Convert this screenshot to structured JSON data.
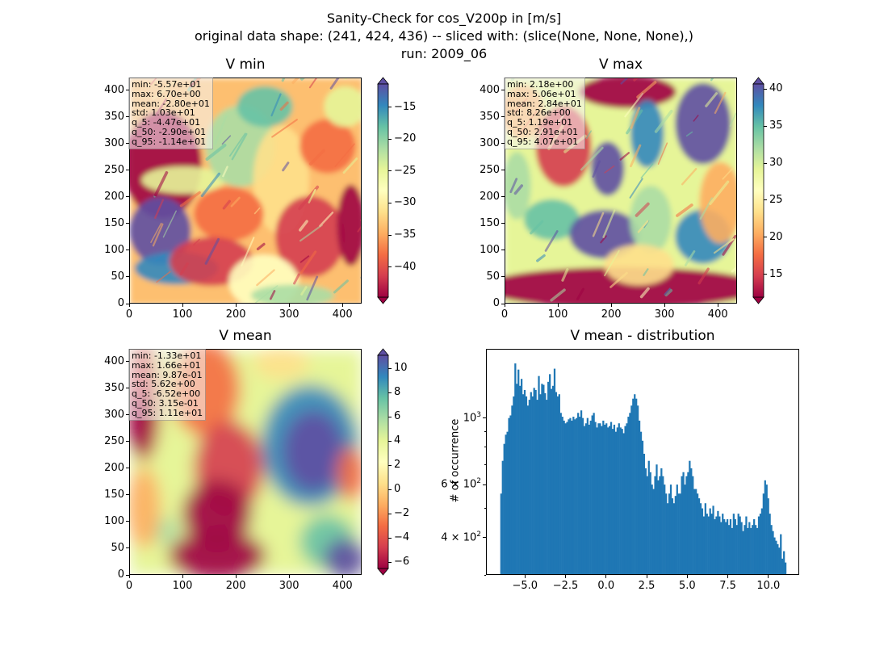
{
  "figure": {
    "title_line1": "Sanity-Check for cos_V200p in [m/s]",
    "title_line2": "original data shape: (241, 424, 436) -- sliced with: (slice(None, None, None),)",
    "title_line3": "run: 2009_06"
  },
  "colormap": {
    "name": "Spectral",
    "stops": [
      "#9e0142",
      "#d53e4f",
      "#f46d43",
      "#fdae61",
      "#fee08b",
      "#ffffbf",
      "#e6f598",
      "#abdda4",
      "#66c2a5",
      "#3288bd",
      "#5e4fa2"
    ]
  },
  "maps": [
    {
      "title": "V min",
      "stats": [
        "min: -5.57e+01",
        "max: 6.70e+00",
        "mean: -2.80e+01",
        "std: 1.03e+01",
        "q_5: -4.47e+01",
        "q_50: -2.90e+01",
        "q_95: -1.14e+01"
      ],
      "xticks": [
        "0",
        "100",
        "200",
        "300",
        "400"
      ],
      "yticks": [
        "0",
        "50",
        "100",
        "150",
        "200",
        "250",
        "300",
        "350",
        "400"
      ],
      "cbar_ticks": [
        "−15",
        "−20",
        "−25",
        "−30",
        "−35",
        "−40"
      ],
      "cbar_tick_values": [
        -15,
        -20,
        -25,
        -30,
        -35,
        -40
      ],
      "cbar_range": [
        -44.7,
        -11.4
      ]
    },
    {
      "title": "V max",
      "stats": [
        "min: 2.18e+00",
        "max: 5.06e+01",
        "mean: 2.84e+01",
        "std: 8.26e+00",
        "q_5: 1.19e+01",
        "q_50: 2.91e+01",
        "q_95: 4.07e+01"
      ],
      "xticks": [
        "0",
        "100",
        "200",
        "300",
        "400"
      ],
      "yticks": [
        "0",
        "50",
        "100",
        "150",
        "200",
        "250",
        "300",
        "350",
        "400"
      ],
      "cbar_ticks": [
        "40",
        "35",
        "30",
        "25",
        "20",
        "15"
      ],
      "cbar_tick_values": [
        40,
        35,
        30,
        25,
        20,
        15
      ],
      "cbar_range": [
        11.9,
        40.7
      ]
    },
    {
      "title": "V mean",
      "stats": [
        "min: -1.33e+01",
        "max: 1.66e+01",
        "mean: 9.87e-01",
        "std: 5.62e+00",
        "q_5: -6.52e+00",
        "q_50: 3.15e-01",
        "q_95: 1.11e+01"
      ],
      "xticks": [
        "0",
        "100",
        "200",
        "300",
        "400"
      ],
      "yticks": [
        "0",
        "50",
        "100",
        "150",
        "200",
        "250",
        "300",
        "350",
        "400"
      ],
      "cbar_ticks": [
        "10",
        "8",
        "6",
        "4",
        "2",
        "0",
        "−2",
        "−4",
        "−6"
      ],
      "cbar_tick_values": [
        10,
        8,
        6,
        4,
        2,
        0,
        -2,
        -4,
        -6
      ],
      "cbar_range": [
        -6.52,
        11.1
      ]
    }
  ],
  "histogram": {
    "title": "V mean - distribution",
    "ylabel": "# of occurrence",
    "xticks": [
      "−5.0",
      "−2.5",
      "0.0",
      "2.5",
      "5.0",
      "7.5",
      "10.0"
    ],
    "xtick_values": [
      -5.0,
      -2.5,
      0.0,
      2.5,
      5.0,
      7.5,
      10.0
    ],
    "yticks": [
      {
        "base": "10",
        "exp": "3",
        "mant": "",
        "value": 1000
      },
      {
        "base": "10",
        "exp": "2",
        "mant": "6 × ",
        "value": 600
      },
      {
        "base": "10",
        "exp": "2",
        "mant": "4 × ",
        "value": 400
      }
    ],
    "bar_color": "#1f77b4"
  },
  "chart_data": {
    "type": "bar",
    "title": "V mean - distribution",
    "xlabel": "",
    "ylabel": "# of occurrence",
    "yscale": "log",
    "xlim": [
      -7.4,
      11.9
    ],
    "ylim": [
      300,
      1700
    ],
    "bin_start": -6.52,
    "bin_end": 11.1,
    "counts": [
      560,
      720,
      820,
      880,
      900,
      1000,
      1020,
      1100,
      1180,
      1520,
      1300,
      1450,
      1280,
      1350,
      1200,
      1240,
      1180,
      1100,
      1150,
      1220,
      1180,
      1260,
      1240,
      1150,
      1380,
      1200,
      1300,
      1290,
      1210,
      1150,
      1320,
      1400,
      1250,
      1280,
      1460,
      1220,
      1180,
      1200,
      1040,
      1010,
      980,
      960,
      970,
      990,
      1000,
      980,
      1010,
      990,
      1000,
      1040,
      1010,
      1060,
      1000,
      940,
      960,
      1000,
      950,
      980,
      1020,
      1040,
      970,
      930,
      960,
      960,
      940,
      980,
      950,
      960,
      930,
      940,
      970,
      920,
      950,
      900,
      930,
      960,
      930,
      920,
      890,
      940,
      960,
      1010,
      1040,
      1100,
      1160,
      1200,
      1160,
      1100,
      980,
      900,
      840,
      760,
      680,
      640,
      720,
      660,
      600,
      580,
      640,
      700,
      620,
      640,
      680,
      640,
      600,
      560,
      520,
      560,
      600,
      540,
      520,
      550,
      600,
      560,
      560,
      640,
      660,
      600,
      640,
      660,
      720,
      680,
      640,
      580,
      580,
      560,
      540,
      520,
      500,
      470,
      520,
      480,
      470,
      500,
      480,
      510,
      460,
      470,
      490,
      470,
      450,
      480,
      460,
      450,
      460,
      440,
      460,
      430,
      480,
      460,
      440,
      480,
      470,
      450,
      420,
      440,
      470,
      430,
      450,
      430,
      440,
      460,
      440,
      430,
      470,
      480,
      500,
      560,
      620,
      600,
      540,
      480,
      440,
      420,
      400,
      390,
      380,
      370,
      410,
      340,
      360,
      330
    ]
  }
}
